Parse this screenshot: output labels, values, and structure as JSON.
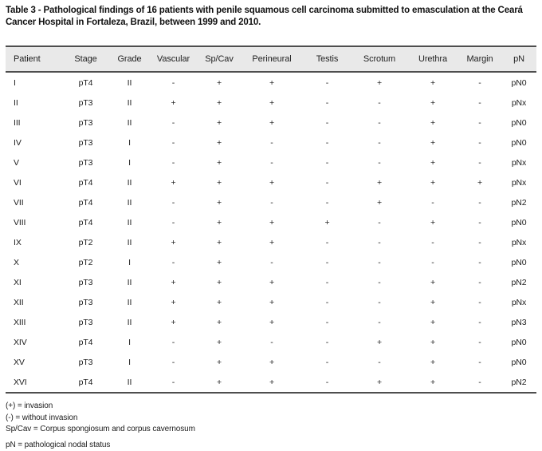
{
  "title": "Table 3 - Pathological findings of 16 patients with penile squamous cell carcinoma submitted to emasculation at the Ceará Cancer Hospital in Fortaleza, Brazil, between 1999 and 2010.",
  "table": {
    "columns": [
      "Patient",
      "Stage",
      "Grade",
      "Vascular",
      "Sp/Cav",
      "Perineural",
      "Testis",
      "Scrotum",
      "Urethra",
      "Margin",
      "pN"
    ],
    "rows": [
      [
        "I",
        "pT4",
        "II",
        "-",
        "+",
        "+",
        "-",
        "+",
        "+",
        "-",
        "pN0"
      ],
      [
        "II",
        "pT3",
        "II",
        "+",
        "+",
        "+",
        "-",
        "-",
        "+",
        "-",
        "pNx"
      ],
      [
        "III",
        "pT3",
        "II",
        "-",
        "+",
        "+",
        "-",
        "-",
        "+",
        "-",
        "pN0"
      ],
      [
        "IV",
        "pT3",
        "I",
        "-",
        "+",
        "-",
        "-",
        "-",
        "+",
        "-",
        "pN0"
      ],
      [
        "V",
        "pT3",
        "I",
        "-",
        "+",
        "-",
        "-",
        "-",
        "+",
        "-",
        "pNx"
      ],
      [
        "VI",
        "pT4",
        "II",
        "+",
        "+",
        "+",
        "-",
        "+",
        "+",
        "+",
        "pNx"
      ],
      [
        "VII",
        "pT4",
        "II",
        "-",
        "+",
        "-",
        "-",
        "+",
        "-",
        "-",
        "pN2"
      ],
      [
        "VIII",
        "pT4",
        "II",
        "-",
        "+",
        "+",
        "+",
        "-",
        "+",
        "-",
        "pN0"
      ],
      [
        "IX",
        "pT2",
        "II",
        "+",
        "+",
        "+",
        "-",
        "-",
        "-",
        "-",
        "pNx"
      ],
      [
        "X",
        "pT2",
        "I",
        "-",
        "+",
        "-",
        "-",
        "-",
        "-",
        "-",
        "pN0"
      ],
      [
        "XI",
        "pT3",
        "II",
        "+",
        "+",
        "+",
        "-",
        "-",
        "+",
        "-",
        "pN2"
      ],
      [
        "XII",
        "pT3",
        "II",
        "+",
        "+",
        "+",
        "-",
        "-",
        "+",
        "-",
        "pNx"
      ],
      [
        "XIII",
        "pT3",
        "II",
        "+",
        "+",
        "+",
        "-",
        "-",
        "+",
        "-",
        "pN3"
      ],
      [
        "XIV",
        "pT4",
        "I",
        "-",
        "+",
        "-",
        "-",
        "+",
        "+",
        "-",
        "pN0"
      ],
      [
        "XV",
        "pT3",
        "I",
        "-",
        "+",
        "+",
        "-",
        "-",
        "+",
        "-",
        "pN0"
      ],
      [
        "XVI",
        "pT4",
        "II",
        "-",
        "+",
        "+",
        "-",
        "+",
        "+",
        "-",
        "pN2"
      ]
    ]
  },
  "footnotes": [
    "(+) = invasion",
    "(-) = without invasion",
    "Sp/Cav = Corpus spongiosum and corpus cavernosum",
    "pN = pathological nodal status"
  ],
  "colors": {
    "header_bg": "#e9e9e9",
    "rule": "#4e4e4e",
    "text": "#1c1c1c"
  }
}
